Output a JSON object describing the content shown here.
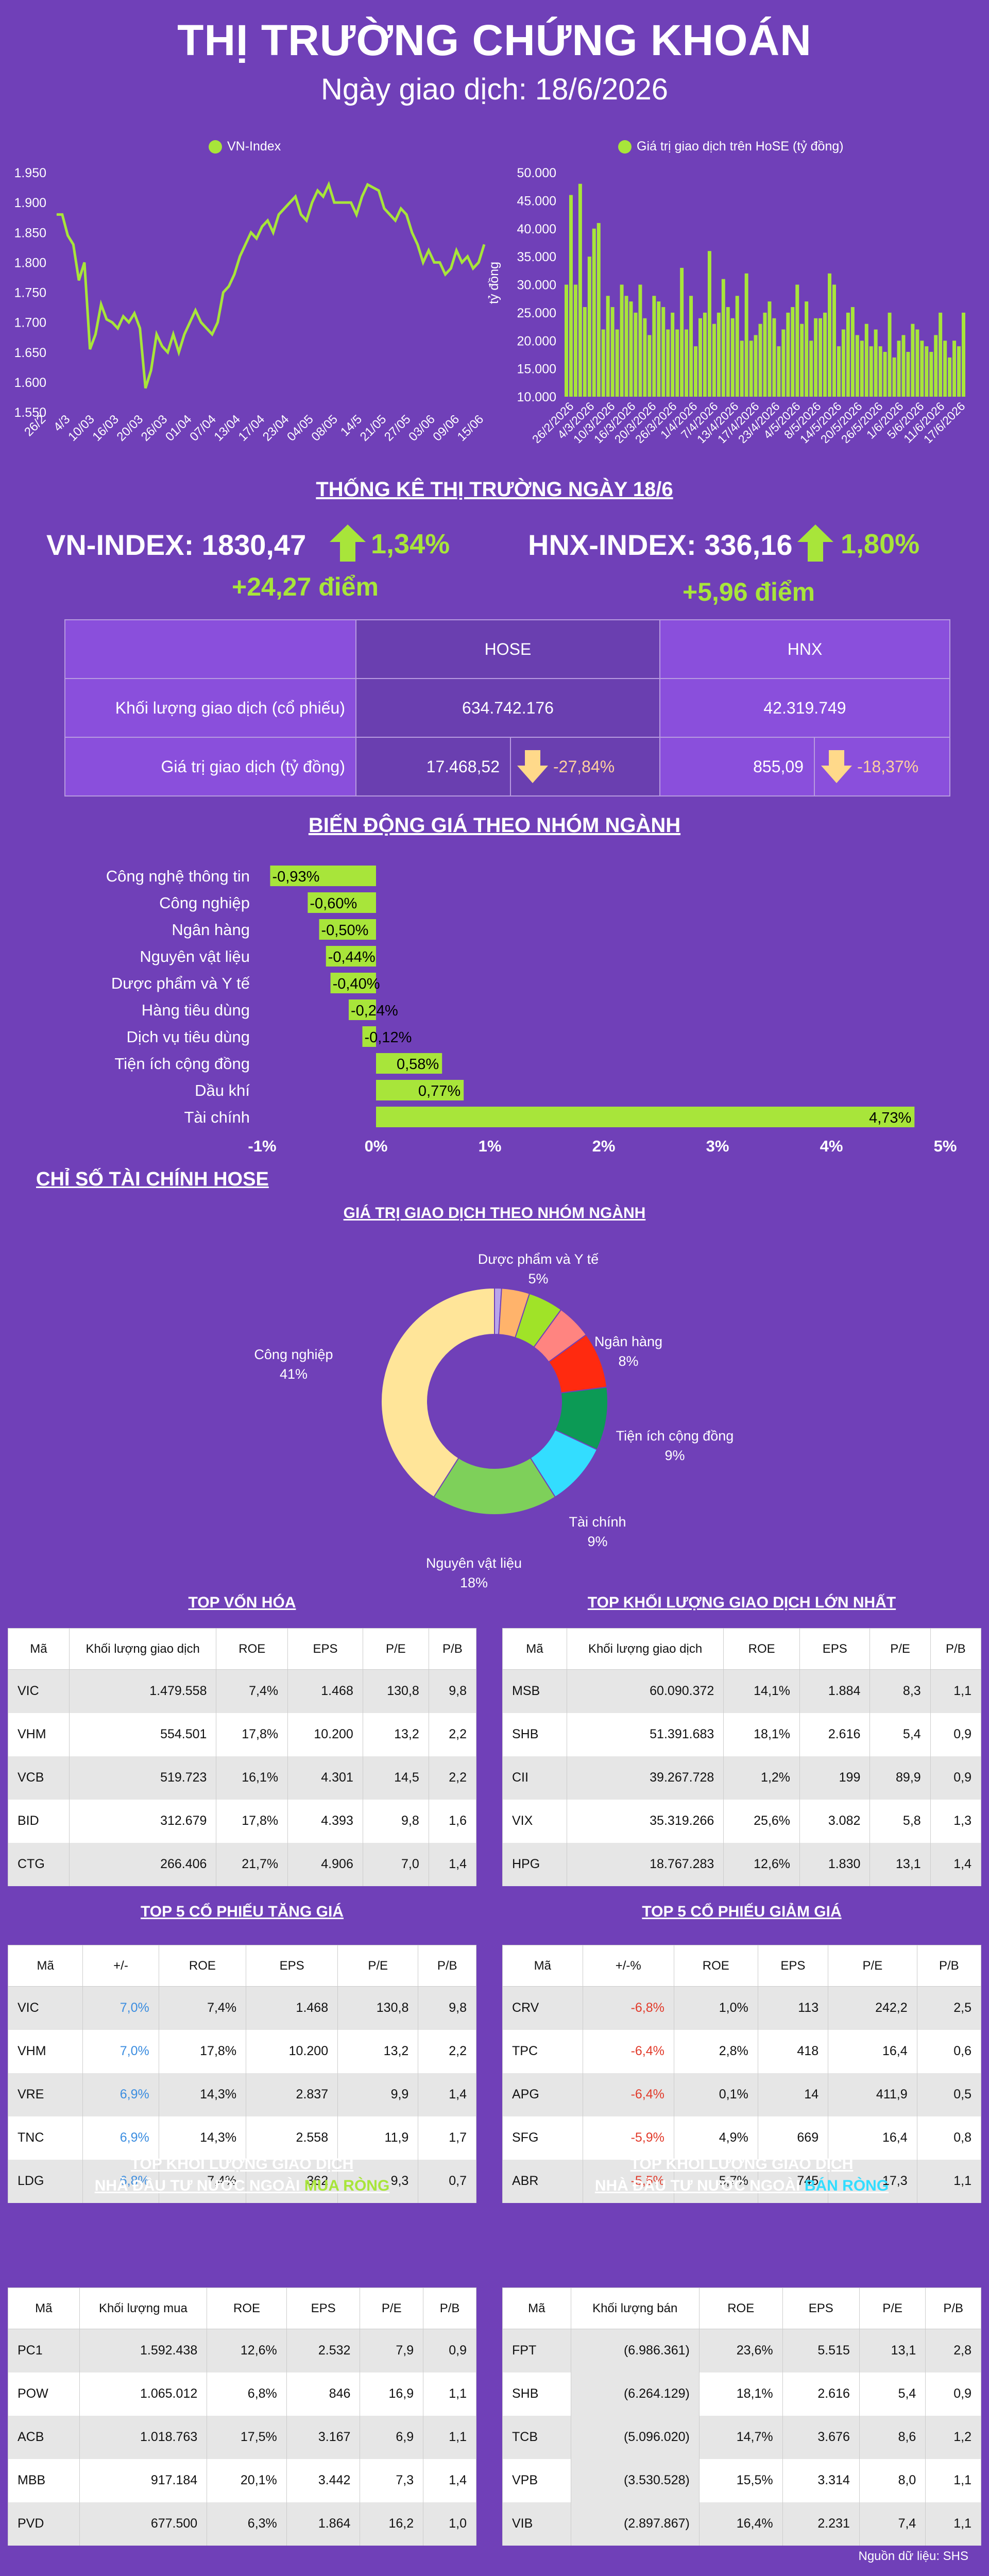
{
  "header": {
    "title": "THỊ TRƯỜNG CHỨNG KHOÁN",
    "subtitle": "Ngày giao dịch: 18/6/2026"
  },
  "vn_chart": {
    "legend": "VN-Index",
    "color": "#a8e53a"
  },
  "hose_chart": {
    "legend": "Giá trị giao dịch trên HoSE (tỷ đồng)",
    "ylabel": "tỷ đồng"
  },
  "chart_data": [
    {
      "type": "line",
      "series": [
        {
          "name": "VN-Index",
          "values": [
            1880,
            1880,
            1845,
            1830,
            1770,
            1800,
            1655,
            1680,
            1730,
            1705,
            1700,
            1690,
            1710,
            1700,
            1715,
            1690,
            1590,
            1620,
            1680,
            1660,
            1650,
            1680,
            1650,
            1680,
            1700,
            1720,
            1700,
            1690,
            1680,
            1700,
            1750,
            1760,
            1780,
            1810,
            1830,
            1850,
            1840,
            1860,
            1870,
            1850,
            1880,
            1890,
            1900,
            1910,
            1880,
            1870,
            1900,
            1920,
            1910,
            1930,
            1900,
            1900,
            1900,
            1900,
            1880,
            1910,
            1930,
            1925,
            1920,
            1890,
            1880,
            1870,
            1890,
            1880,
            1850,
            1830,
            1800,
            1820,
            1800,
            1800,
            1780,
            1790,
            1820,
            1800,
            1810,
            1790,
            1800,
            1830
          ]
        }
      ],
      "x_ticks": [
        "26/2",
        "4/3",
        "10/03",
        "16/03",
        "20/03",
        "26/03",
        "01/04",
        "07/04",
        "13/04",
        "17/04",
        "23/04",
        "04/05",
        "08/05",
        "14/5",
        "21/05",
        "27/05",
        "03/06",
        "09/06",
        "15/06"
      ],
      "y_ticks": [
        "1.550",
        "1.600",
        "1.650",
        "1.700",
        "1.750",
        "1.800",
        "1.850",
        "1.900",
        "1.950"
      ],
      "ylim": [
        1550,
        1950
      ]
    },
    {
      "type": "bar",
      "series": [
        {
          "name": "Giá trị giao dịch trên HoSE (tỷ đồng)",
          "values": [
            30000,
            46000,
            30000,
            48000,
            26000,
            35000,
            40000,
            41000,
            22000,
            28000,
            26000,
            22000,
            30000,
            28000,
            27000,
            25000,
            30000,
            24000,
            21000,
            28000,
            27000,
            26000,
            22000,
            25000,
            22000,
            33000,
            22000,
            28000,
            19000,
            24000,
            25000,
            36000,
            23000,
            25000,
            31000,
            26000,
            24000,
            28000,
            20000,
            32000,
            20000,
            21000,
            23000,
            25000,
            27000,
            24000,
            19000,
            22000,
            25000,
            26000,
            30000,
            23000,
            27000,
            20000,
            24000,
            24000,
            25000,
            32000,
            30000,
            19000,
            22000,
            25000,
            26000,
            21000,
            20000,
            23000,
            19000,
            22000,
            19000,
            18000,
            25000,
            17000,
            20000,
            21000,
            18000,
            23000,
            22000,
            20000,
            19000,
            18000,
            21000,
            25000,
            20000,
            17000,
            20000,
            19000,
            25000
          ]
        }
      ],
      "x_ticks": [
        "26/2/2026",
        "4/3/2026",
        "10/3/2026",
        "16/3/2026",
        "20/3/2026",
        "26/3/2026",
        "1/4/2026",
        "7/4/2026",
        "13/4/2026",
        "17/4/2026",
        "23/4/2026",
        "4/5/2026",
        "8/5/2026",
        "14/5/2026",
        "20/5/2026",
        "26/5/2026",
        "1/6/2026",
        "5/6/2026",
        "11/6/2026",
        "17/6/2026"
      ],
      "y_ticks": [
        "10.000",
        "15.000",
        "20.000",
        "25.000",
        "30.000",
        "35.000",
        "40.000",
        "45.000",
        "50.000"
      ],
      "ylim": [
        10000,
        50000
      ]
    },
    {
      "type": "bar",
      "title": "BIẾN ĐỘNG GIÁ THEO NHÓM NGÀNH",
      "categories": [
        "Công nghệ thông tin",
        "Công nghiệp",
        "Ngân hàng",
        "Nguyên vật liệu",
        "Dược phẩm và Y tế",
        "Hàng tiêu dùng",
        "Dịch vụ tiêu dùng",
        "Tiện ích cộng đồng",
        "Dầu khí",
        "Tài chính"
      ],
      "values": [
        -0.93,
        -0.6,
        -0.5,
        -0.44,
        -0.4,
        -0.24,
        -0.12,
        0.58,
        0.77,
        4.73
      ],
      "labels": [
        "-0,93%",
        "-0,60%",
        "-0,50%",
        "-0,44%",
        "-0,40%",
        "-0,24%",
        "-0,12%",
        "0,58%",
        "0,77%",
        "4,73%"
      ],
      "x_ticks": [
        "-1%",
        "0%",
        "1%",
        "2%",
        "3%",
        "4%",
        "5%"
      ],
      "xlim": [
        -1,
        5
      ]
    },
    {
      "type": "pie",
      "title": "GIÁ TRỊ GIAO DỊCH THEO NHÓM NGÀNH",
      "slices": [
        {
          "name": "Công nghiệp",
          "value": 41,
          "color": "#ffe599"
        },
        {
          "name": "Nguyên vật liệu",
          "value": 18,
          "color": "#7ed05a"
        },
        {
          "name": "Tài chính",
          "value": 9,
          "color": "#33ddff"
        },
        {
          "name": "Tiện ích cộng đồng",
          "value": 9,
          "color": "#0c9a55"
        },
        {
          "name": "Ngân hàng",
          "value": 8,
          "color": "#ff2a0f"
        },
        {
          "name": "Dược phẩm và Y tế",
          "value": 5,
          "color": "#ff8480"
        },
        {
          "name": "",
          "value": 5,
          "color": "#a0e328"
        },
        {
          "name": "",
          "value": 4,
          "color": "#ffb36b"
        },
        {
          "name": "",
          "value": 1,
          "color": "#b9a5ea"
        }
      ]
    }
  ],
  "stats": {
    "heading": "THỐNG KÊ THỊ TRƯỜNG NGÀY 18/6",
    "vn_label": "VN-INDEX: 1830,47",
    "vn_pct": "1,34%",
    "vn_points": "+24,27 điểm",
    "hnx_label": "HNX-INDEX: 336,16",
    "hnx_pct": "1,80%",
    "hnx_points": "+5,96 điểm",
    "col_hose": "HOSE",
    "col_hnx": "HNX",
    "row1": "Khối lượng giao dịch (cổ phiếu)",
    "row2": "Giá trị giao dịch (tỷ đồng)",
    "hose_vol": "634.742.176",
    "hnx_vol": "42.319.749",
    "hose_val": "17.468,52",
    "hose_chg": "-27,84%",
    "hnx_val": "855,09",
    "hnx_chg": "-18,37%"
  },
  "sector_heading": "BIẾN ĐỘNG GIÁ THEO NHÓM NGÀNH",
  "fin_heading": "CHỈ SỐ TÀI CHÍNH HOSE",
  "pie": {
    "title": "GIÁ TRỊ GIAO DỊCH THEO NHÓM NGÀNH",
    "l_duoc": "Dược phẩm và Y tế",
    "p_duoc": "5%",
    "l_ngan": "Ngân hàng",
    "p_ngan": "8%",
    "l_tien": "Tiện ích cộng đồng",
    "p_tien": "9%",
    "l_tai": "Tài chính",
    "p_tai": "9%",
    "l_nguyen": "Nguyên vật liệu",
    "p_nguyen": "18%",
    "l_cong": "Công nghiệp",
    "p_cong": "41%"
  },
  "tables": [
    {
      "title": "TOP VỐN HÓA",
      "headers": [
        "Mã",
        "Khối lượng giao dịch",
        "ROE",
        "EPS",
        "P/E",
        "P/B"
      ],
      "rows": [
        [
          "VIC",
          "1.479.558",
          "7,4%",
          "1.468",
          "130,8",
          "9,8"
        ],
        [
          "VHM",
          "554.501",
          "17,8%",
          "10.200",
          "13,2",
          "2,2"
        ],
        [
          "VCB",
          "519.723",
          "16,1%",
          "4.301",
          "14,5",
          "2,2"
        ],
        [
          "BID",
          "312.679",
          "17,8%",
          "4.393",
          "9,8",
          "1,6"
        ],
        [
          "CTG",
          "266.406",
          "21,7%",
          "4.906",
          "7,0",
          "1,4"
        ]
      ]
    },
    {
      "title": "TOP KHỐI LƯỢNG GIAO DỊCH LỚN NHẤT",
      "headers": [
        "Mã",
        "Khối lượng giao dịch",
        "ROE",
        "EPS",
        "P/E",
        "P/B"
      ],
      "rows": [
        [
          "MSB",
          "60.090.372",
          "14,1%",
          "1.884",
          "8,3",
          "1,1"
        ],
        [
          "SHB",
          "51.391.683",
          "18,1%",
          "2.616",
          "5,4",
          "0,9"
        ],
        [
          "CII",
          "39.267.728",
          "1,2%",
          "199",
          "89,9",
          "0,9"
        ],
        [
          "VIX",
          "35.319.266",
          "25,6%",
          "3.082",
          "5,8",
          "1,3"
        ],
        [
          "HPG",
          "18.767.283",
          "12,6%",
          "1.830",
          "13,1",
          "1,4"
        ]
      ]
    },
    {
      "title": "TOP 5 CỔ PHIẾU TĂNG GIÁ",
      "headers": [
        "Mã",
        "+/-",
        "ROE",
        "EPS",
        "P/E",
        "P/B"
      ],
      "rows": [
        [
          "VIC",
          "7,0%",
          "7,4%",
          "1.468",
          "130,8",
          "9,8"
        ],
        [
          "VHM",
          "7,0%",
          "17,8%",
          "10.200",
          "13,2",
          "2,2"
        ],
        [
          "VRE",
          "6,9%",
          "14,3%",
          "2.837",
          "9,9",
          "1,4"
        ],
        [
          "TNC",
          "6,9%",
          "14,3%",
          "2.558",
          "11,9",
          "1,7"
        ],
        [
          "LDG",
          "6,8%",
          "7,4%",
          "362",
          "9,3",
          "0,7"
        ]
      ]
    },
    {
      "title": "TOP 5 CỔ PHIẾU GIẢM GIÁ",
      "headers": [
        "Mã",
        "+/-%",
        "ROE",
        "EPS",
        "P/E",
        "P/B"
      ],
      "rows": [
        [
          "CRV",
          "-6,8%",
          "1,0%",
          "113",
          "242,2",
          "2,5"
        ],
        [
          "TPC",
          "-6,4%",
          "2,8%",
          "418",
          "16,4",
          "0,6"
        ],
        [
          "APG",
          "-6,4%",
          "0,1%",
          "14",
          "411,9",
          "0,5"
        ],
        [
          "SFG",
          "-5,9%",
          "4,9%",
          "669",
          "16,4",
          "0,8"
        ],
        [
          "ABR",
          "-5,5%",
          "5,7%",
          "745",
          "17,3",
          "1,1"
        ]
      ]
    },
    {
      "title1": "TOP KHỐI LƯỢNG GIAO DỊCH",
      "title2a": "NHÀ ĐẦU TƯ NƯỚC NGOÀI ",
      "title2b": "MUA RÒNG",
      "headers": [
        "Mã",
        "Khối lượng mua",
        "ROE",
        "EPS",
        "P/E",
        "P/B"
      ],
      "rows": [
        [
          "PC1",
          "1.592.438",
          "12,6%",
          "2.532",
          "7,9",
          "0,9"
        ],
        [
          "POW",
          "1.065.012",
          "6,8%",
          "846",
          "16,9",
          "1,1"
        ],
        [
          "ACB",
          "1.018.763",
          "17,5%",
          "3.167",
          "6,9",
          "1,1"
        ],
        [
          "MBB",
          "917.184",
          "20,1%",
          "3.442",
          "7,3",
          "1,4"
        ],
        [
          "PVD",
          "677.500",
          "6,3%",
          "1.864",
          "16,2",
          "1,0"
        ]
      ]
    },
    {
      "title1": "TOP KHỐI LƯỢNG GIAO DỊCH",
      "title2a": "NHÀ ĐẦU TƯ NƯỚC NGOÀI ",
      "title2b": "BÁN RÒNG",
      "headers": [
        "Mã",
        "Khối lượng bán",
        "ROE",
        "EPS",
        "P/E",
        "P/B"
      ],
      "rows": [
        [
          "FPT",
          "(6.986.361)",
          "23,6%",
          "5.515",
          "13,1",
          "2,8"
        ],
        [
          "SHB",
          "(6.264.129)",
          "18,1%",
          "2.616",
          "5,4",
          "0,9"
        ],
        [
          "TCB",
          "(5.096.020)",
          "14,7%",
          "3.676",
          "8,6",
          "1,2"
        ],
        [
          "VPB",
          "(3.530.528)",
          "15,5%",
          "3.314",
          "8,0",
          "1,1"
        ],
        [
          "VIB",
          "(2.897.867)",
          "16,4%",
          "2.231",
          "7,4",
          "1,1"
        ]
      ]
    }
  ],
  "source": "Nguồn dữ liệu: SHS"
}
